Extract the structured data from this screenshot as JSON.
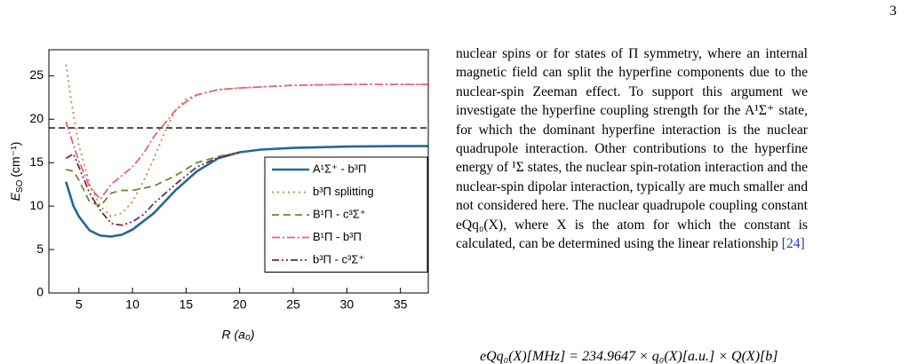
{
  "page_number": "3",
  "chart_data": {
    "type": "line",
    "x_label": "R (a₀)",
    "y_label": {
      "symbol": "E",
      "subscript": "SO",
      "unit": "(cm⁻¹)"
    },
    "xlim": [
      2.2,
      37.6
    ],
    "ylim": [
      0,
      28
    ],
    "xticks": [
      5,
      10,
      15,
      20,
      25,
      30,
      35
    ],
    "yticks": [
      0,
      5,
      10,
      15,
      20,
      25
    ],
    "reference_line": 19,
    "legend": "right",
    "series": [
      {
        "name": "A¹Σ⁺ - b³Π",
        "color": "#1f6a94",
        "dash": "solid",
        "x": [
          3.8,
          4.5,
          5,
          6,
          7,
          8,
          9,
          10,
          12,
          14,
          16,
          18,
          20,
          22,
          25,
          30,
          35,
          37.6
        ],
        "values": [
          12.8,
          10,
          8.8,
          7.2,
          6.6,
          6.5,
          6.7,
          7.3,
          9.2,
          11.8,
          14,
          15.5,
          16.2,
          16.5,
          16.7,
          16.85,
          16.9,
          16.9
        ]
      },
      {
        "name": "b³Π splitting",
        "color": "#c8843c",
        "dash": "dotted",
        "x": [
          3.8,
          4.3,
          5,
          6,
          7,
          8,
          9,
          10,
          11,
          12,
          13,
          14,
          15,
          16,
          18,
          20,
          25,
          30,
          37.6
        ],
        "values": [
          26.3,
          22,
          17,
          12.5,
          10,
          8.8,
          9.2,
          10.5,
          12.8,
          15.5,
          18.5,
          21,
          22.3,
          22.8,
          23.4,
          23.6,
          23.9,
          24,
          24
        ]
      },
      {
        "name": "B¹Π - c³Σ⁺",
        "color": "#7b7d35",
        "dash": "dashed",
        "x": [
          3.8,
          4.5,
          5,
          6,
          7,
          8,
          9,
          10,
          12,
          14,
          16,
          18,
          20
        ],
        "values": [
          14.2,
          14,
          13,
          10.5,
          10,
          11.5,
          11.8,
          11.8,
          12.3,
          13.5,
          15,
          15.7,
          16.2
        ]
      },
      {
        "name": "B¹Π - b³Π",
        "color": "#e8607f",
        "dash": "dashdot",
        "x": [
          3.8,
          4.5,
          5,
          6,
          7,
          8,
          9,
          10,
          11,
          12,
          13,
          14,
          15,
          16,
          18,
          20,
          25,
          30,
          37.6
        ],
        "values": [
          19.7,
          17,
          15.2,
          12.2,
          10.8,
          12.5,
          13.5,
          14.5,
          16,
          18,
          19.5,
          21,
          22,
          22.8,
          23.4,
          23.6,
          23.9,
          24,
          24
        ]
      },
      {
        "name": "b³Π - c³Σ⁺",
        "color": "#6e2a52",
        "dash": "dashdotdot",
        "x": [
          3.8,
          4.5,
          5,
          6,
          7,
          8,
          9,
          10,
          11,
          12,
          14,
          16,
          18,
          20
        ],
        "values": [
          15.5,
          16,
          14.5,
          11.5,
          9.5,
          8,
          7.8,
          8.2,
          9,
          10.3,
          12.5,
          14.5,
          15.6,
          16.2
        ]
      }
    ]
  },
  "text": {
    "body": "nuclear spins or for states of Π symmetry, where an internal magnetic field can split the hyperfine components due to the nuclear-spin Zeeman effect. To support this argument we investigate the hyperfine coupling strength for the A¹Σ⁺ state, for which the dominant hyperfine interaction is the nuclear quadrupole interaction. Other contributions to the hyperfine energy of ¹Σ states, the nuclear spin-rotation interaction and the nuclear-spin dipolar interaction, typically are much smaller and not considered here. The nuclear quadrupole coupling constant eQq₀(X), where X is the atom for which the constant is calculated, can be determined using the linear relationship",
    "citation": "[24]",
    "equation": "eQq₀(X)[MHz] = 234.9647 × q₀(X)[a.u.] × Q(X)[b]"
  }
}
